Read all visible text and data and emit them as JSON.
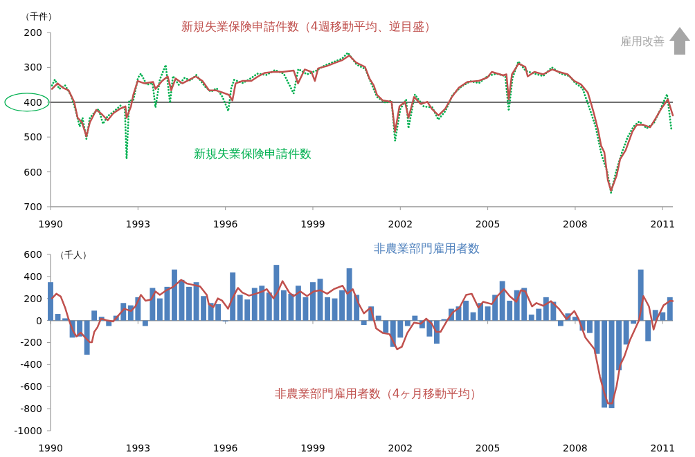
{
  "chart_data": [
    {
      "type": "line",
      "ylabel": "（千件）",
      "annotations": [
        "雇用改善"
      ],
      "xlim": [
        1990,
        2011.35
      ],
      "xticks": [
        1990,
        1993,
        1996,
        1999,
        2002,
        2005,
        2008,
        2011
      ],
      "ylim": [
        700,
        200
      ],
      "yticks": [
        200,
        300,
        400,
        500,
        600,
        700
      ],
      "line_style": "solid",
      "ref_lines": [
        {
          "axis": "y",
          "value": 400,
          "color": "#000000"
        }
      ],
      "series": [
        {
          "name": "新規失業保険申請件数",
          "color": "#00b050",
          "line_style": "dotted",
          "x": [
            1990.05,
            1990.15,
            1990.3,
            1990.5,
            1990.7,
            1990.85,
            1991.0,
            1991.1,
            1991.23,
            1991.35,
            1991.5,
            1991.65,
            1991.8,
            1991.96,
            1992.15,
            1992.4,
            1992.55,
            1992.61,
            1992.7,
            1992.84,
            1993.0,
            1993.1,
            1993.3,
            1993.5,
            1993.6,
            1993.75,
            1993.95,
            1994.1,
            1994.2,
            1994.4,
            1994.6,
            1994.8,
            1995.0,
            1995.3,
            1995.5,
            1995.7,
            1995.9,
            1996.1,
            1996.2,
            1996.3,
            1996.6,
            1996.9,
            1997.1,
            1997.4,
            1997.7,
            1998.0,
            1998.34,
            1998.5,
            1998.8,
            1999.1,
            1999.4,
            1999.7,
            2000.0,
            2000.2,
            2000.5,
            2000.8,
            2001.0,
            2001.2,
            2001.5,
            2001.7,
            2001.82,
            2002.0,
            2002.2,
            2002.28,
            2002.5,
            2002.8,
            2003.1,
            2003.3,
            2003.55,
            2003.8,
            2004.1,
            2004.4,
            2004.7,
            2005.0,
            2005.3,
            2005.6,
            2005.72,
            2005.85,
            2006.05,
            2006.3,
            2006.6,
            2006.9,
            2007.2,
            2007.5,
            2007.8,
            2008.0,
            2008.25,
            2008.5,
            2008.7,
            2008.9,
            2009.1,
            2009.23,
            2009.4,
            2009.6,
            2009.8,
            2010.0,
            2010.2,
            2010.45,
            2010.7,
            2010.9,
            2011.15,
            2011.3
          ],
          "values": [
            352,
            335,
            362,
            352,
            380,
            420,
            470,
            445,
            505,
            445,
            430,
            420,
            462,
            440,
            428,
            410,
            420,
            563,
            395,
            395,
            330,
            318,
            350,
            345,
            415,
            335,
            293,
            402,
            325,
            350,
            330,
            338,
            322,
            355,
            370,
            360,
            385,
            425,
            360,
            336,
            345,
            330,
            318,
            322,
            308,
            318,
            375,
            305,
            320,
            310,
            295,
            285,
            275,
            258,
            292,
            305,
            345,
            385,
            402,
            395,
            511,
            420,
            392,
            475,
            378,
            412,
            415,
            450,
            425,
            378,
            355,
            340,
            345,
            325,
            318,
            325,
            425,
            330,
            283,
            310,
            318,
            325,
            300,
            318,
            325,
            345,
            360,
            420,
            470,
            550,
            600,
            660,
            600,
            545,
            500,
            470,
            455,
            475,
            460,
            425,
            377,
            478
          ]
        },
        {
          "name": "新規失業保険申請件数（4週移動平均、逆目盛）",
          "color": "#c0504d",
          "x": [
            1990.05,
            1990.24,
            1990.43,
            1990.62,
            1990.81,
            1990.93,
            1991.08,
            1991.23,
            1991.35,
            1991.57,
            1991.73,
            1991.96,
            1992.15,
            1992.38,
            1992.57,
            1992.61,
            1992.76,
            1992.84,
            1992.99,
            1993.22,
            1993.52,
            1993.6,
            1993.83,
            1994.02,
            1994.14,
            1994.29,
            1994.52,
            1994.75,
            1994.98,
            1995.21,
            1995.44,
            1995.67,
            1995.89,
            1996.12,
            1996.24,
            1996.35,
            1996.58,
            1996.89,
            1997.12,
            1997.35,
            1997.65,
            1997.96,
            1998.34,
            1998.49,
            1998.72,
            1998.95,
            1999.07,
            1999.18,
            1999.49,
            1999.79,
            2000.02,
            2000.25,
            2000.48,
            2000.79,
            2000.94,
            2001.09,
            2001.2,
            2001.4,
            2001.7,
            2001.82,
            2001.97,
            2002.16,
            2002.28,
            2002.47,
            2002.7,
            2002.93,
            2003.08,
            2003.31,
            2003.54,
            2003.77,
            2004.0,
            2004.3,
            2004.68,
            2004.99,
            2005.14,
            2005.53,
            2005.64,
            2005.72,
            2005.83,
            2006.06,
            2006.29,
            2006.37,
            2006.6,
            2006.9,
            2007.21,
            2007.44,
            2007.74,
            2007.97,
            2008.2,
            2008.43,
            2008.55,
            2008.66,
            2008.78,
            2008.89,
            2009.0,
            2009.12,
            2009.23,
            2009.42,
            2009.54,
            2009.73,
            2009.96,
            2010.11,
            2010.34,
            2010.57,
            2010.72,
            2010.95,
            2011.18,
            2011.35
          ],
          "values": [
            362,
            346,
            359,
            366,
            399,
            445,
            458,
            498,
            458,
            422,
            432,
            452,
            432,
            419,
            412,
            445,
            412,
            379,
            339,
            346,
            342,
            362,
            339,
            326,
            366,
            332,
            346,
            336,
            326,
            339,
            366,
            366,
            372,
            379,
            395,
            346,
            339,
            339,
            326,
            316,
            313,
            313,
            309,
            346,
            306,
            313,
            339,
            303,
            296,
            286,
            279,
            266,
            286,
            299,
            332,
            352,
            379,
            395,
            399,
            485,
            412,
            399,
            445,
            385,
            405,
            399,
            419,
            438,
            419,
            385,
            359,
            342,
            339,
            329,
            313,
            323,
            320,
            392,
            320,
            289,
            299,
            326,
            313,
            320,
            306,
            313,
            320,
            339,
            349,
            372,
            405,
            438,
            478,
            525,
            544,
            624,
            654,
            611,
            564,
            538,
            485,
            465,
            465,
            472,
            452,
            419,
            392,
            438
          ]
        }
      ]
    },
    {
      "type": "bar",
      "ylabel": "（千人）",
      "xlim": [
        1990,
        2011.35
      ],
      "xticks": [
        1990,
        1993,
        1996,
        1999,
        2002,
        2005,
        2008,
        2011
      ],
      "ylim": [
        -1000,
        600
      ],
      "yticks": [
        -1000,
        -800,
        -600,
        -400,
        -200,
        0,
        200,
        400,
        600
      ],
      "series": [
        {
          "name": "非農業部門雇用者数",
          "type": "bar",
          "color": "#4f81bd",
          "x": [
            1990.0,
            1990.25,
            1990.5,
            1990.75,
            1991.0,
            1991.25,
            1991.5,
            1991.75,
            1992.0,
            1992.25,
            1992.5,
            1992.75,
            1993.0,
            1993.25,
            1993.5,
            1993.75,
            1994.0,
            1994.25,
            1994.5,
            1994.75,
            1995.0,
            1995.25,
            1995.5,
            1995.75,
            1996.0,
            1996.25,
            1996.5,
            1996.75,
            1997.0,
            1997.25,
            1997.5,
            1997.75,
            1998.0,
            1998.25,
            1998.5,
            1998.75,
            1999.0,
            1999.25,
            1999.5,
            1999.75,
            2000.0,
            2000.25,
            2000.5,
            2000.75,
            2001.0,
            2001.25,
            2001.5,
            2001.75,
            2002.0,
            2002.25,
            2002.5,
            2002.75,
            2003.0,
            2003.25,
            2003.5,
            2003.75,
            2004.0,
            2004.25,
            2004.5,
            2004.75,
            2005.0,
            2005.25,
            2005.5,
            2005.75,
            2006.0,
            2006.25,
            2006.5,
            2006.75,
            2007.0,
            2007.25,
            2007.5,
            2007.75,
            2008.0,
            2008.25,
            2008.5,
            2008.75,
            2009.0,
            2009.25,
            2009.5,
            2009.75,
            2010.0,
            2010.25,
            2010.5,
            2010.75,
            2011.0,
            2011.25
          ],
          "values": [
            348,
            60,
            20,
            -155,
            -145,
            -310,
            90,
            34,
            -50,
            44,
            159,
            138,
            212,
            -50,
            296,
            201,
            306,
            463,
            369,
            306,
            348,
            222,
            159,
            149,
            -8,
            436,
            233,
            191,
            296,
            316,
            254,
            505,
            275,
            243,
            316,
            212,
            348,
            379,
            212,
            201,
            275,
            474,
            233,
            -40,
            128,
            44,
            -113,
            -239,
            -155,
            -50,
            44,
            -70,
            -145,
            -210,
            13,
            107,
            128,
            180,
            75,
            159,
            128,
            233,
            358,
            180,
            275,
            296,
            54,
            107,
            212,
            170,
            -50,
            65,
            34,
            -92,
            -113,
            -302,
            -790,
            -794,
            -450,
            -218,
            -29,
            463,
            -187,
            96,
            75,
            212
          ]
        },
        {
          "name": "非農業部門雇用者数（4ヶ月移動平均）",
          "type": "line",
          "color": "#c0504d",
          "x": [
            1990.05,
            1990.2,
            1990.35,
            1990.5,
            1990.62,
            1990.77,
            1990.89,
            1991.04,
            1991.19,
            1991.35,
            1991.42,
            1991.5,
            1991.61,
            1991.73,
            1991.92,
            1992.15,
            1992.3,
            1992.53,
            1992.76,
            1992.91,
            1993.1,
            1993.26,
            1993.45,
            1993.6,
            1993.75,
            1993.98,
            1994.21,
            1994.48,
            1994.67,
            1994.9,
            1995.13,
            1995.36,
            1995.43,
            1995.59,
            1995.74,
            1995.89,
            1996.09,
            1996.24,
            1996.43,
            1996.58,
            1996.81,
            1997.04,
            1997.27,
            1997.42,
            1997.65,
            1997.8,
            1997.96,
            1998.19,
            1998.34,
            1998.57,
            1998.8,
            1999.03,
            1999.26,
            1999.49,
            1999.72,
            2000.02,
            2000.18,
            2000.37,
            2000.56,
            2000.75,
            2000.98,
            2001.17,
            2001.4,
            2001.63,
            2001.89,
            2002.05,
            2002.24,
            2002.47,
            2002.7,
            2002.89,
            2003.08,
            2003.23,
            2003.38,
            2003.61,
            2003.8,
            2004.03,
            2004.26,
            2004.45,
            2004.68,
            2004.84,
            2005.14,
            2005.33,
            2005.56,
            2005.75,
            2005.98,
            2006.14,
            2006.29,
            2006.52,
            2006.67,
            2006.9,
            2007.17,
            2007.44,
            2007.7,
            2007.97,
            2008.12,
            2008.35,
            2008.66,
            2008.85,
            2009.0,
            2009.12,
            2009.27,
            2009.42,
            2009.54,
            2009.69,
            2009.88,
            2010.19,
            2010.34,
            2010.53,
            2010.69,
            2010.8,
            2011.03,
            2011.26,
            2011.35
          ],
          "values": [
            201,
            243,
            218,
            117,
            13,
            -92,
            -145,
            -109,
            -155,
            -197,
            -197,
            -103,
            -61,
            17,
            2,
            -8,
            38,
            107,
            86,
            128,
            233,
            180,
            191,
            264,
            233,
            275,
            306,
            369,
            337,
            323,
            310,
            233,
            149,
            122,
            201,
            180,
            107,
            201,
            296,
            254,
            226,
            243,
            264,
            285,
            201,
            264,
            358,
            254,
            222,
            264,
            222,
            264,
            275,
            243,
            285,
            316,
            243,
            285,
            159,
            65,
            117,
            -71,
            -113,
            -124,
            -260,
            -239,
            -113,
            -19,
            -29,
            17,
            -29,
            -103,
            -103,
            2,
            75,
            117,
            233,
            243,
            117,
            170,
            149,
            222,
            285,
            222,
            170,
            275,
            264,
            128,
            159,
            134,
            176,
            107,
            13,
            86,
            13,
            -155,
            -260,
            -511,
            -658,
            -752,
            -752,
            -595,
            -407,
            -323,
            -176,
            2,
            222,
            128,
            -82,
            13,
            138,
            180,
            176
          ]
        }
      ]
    }
  ]
}
